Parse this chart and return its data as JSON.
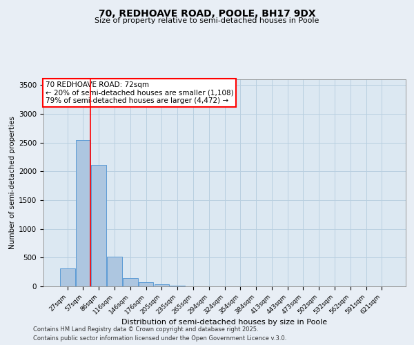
{
  "title1": "70, REDHOAVE ROAD, POOLE, BH17 9DX",
  "title2": "Size of property relative to semi-detached houses in Poole",
  "xlabel": "Distribution of semi-detached houses by size in Poole",
  "ylabel": "Number of semi-detached properties",
  "bar_labels": [
    "27sqm",
    "57sqm",
    "86sqm",
    "116sqm",
    "146sqm",
    "176sqm",
    "205sqm",
    "235sqm",
    "265sqm",
    "294sqm",
    "324sqm",
    "354sqm",
    "384sqm",
    "413sqm",
    "443sqm",
    "473sqm",
    "502sqm",
    "532sqm",
    "562sqm",
    "591sqm",
    "621sqm"
  ],
  "bar_values": [
    310,
    2540,
    2110,
    520,
    150,
    75,
    40,
    10,
    5,
    0,
    0,
    0,
    0,
    0,
    0,
    0,
    0,
    0,
    0,
    0,
    0
  ],
  "bar_color": "#adc6e0",
  "bar_edge_color": "#5b9bd5",
  "ylim": [
    0,
    3600
  ],
  "yticks": [
    0,
    500,
    1000,
    1500,
    2000,
    2500,
    3000,
    3500
  ],
  "red_line_x": 1.47,
  "annotation_title": "70 REDHOAVE ROAD: 72sqm",
  "annotation_line2": "← 20% of semi-detached houses are smaller (1,108)",
  "annotation_line3": "79% of semi-detached houses are larger (4,472) →",
  "footer1": "Contains HM Land Registry data © Crown copyright and database right 2025.",
  "footer2": "Contains public sector information licensed under the Open Government Licence v.3.0.",
  "bg_color": "#e8eef5",
  "plot_bg_color": "#dce8f2",
  "grid_color": "#b8cfe0"
}
